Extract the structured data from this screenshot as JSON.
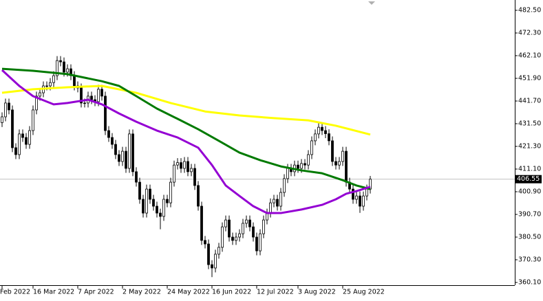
{
  "chart_data": {
    "type": "candlestick",
    "categories": [
      "Feb 2022",
      null,
      null,
      null,
      null,
      null,
      null,
      null,
      null,
      "16 Mar 2022",
      null,
      null,
      null,
      null,
      null,
      null,
      null,
      null,
      null,
      null,
      null,
      null,
      "7 Apr 2022",
      null,
      null,
      null,
      null,
      null,
      null,
      null,
      null,
      null,
      null,
      null,
      null,
      "2 May 2022",
      null,
      null,
      null,
      null,
      null,
      null,
      null,
      null,
      null,
      null,
      null,
      null,
      "24 May 2022",
      null,
      null,
      null,
      null,
      null,
      null,
      null,
      null,
      null,
      null,
      null,
      null,
      "16 Jun 2022",
      null,
      null,
      null,
      null,
      null,
      null,
      null,
      null,
      null,
      null,
      null,
      null,
      "12 Jul 2022",
      null,
      null,
      null,
      null,
      null,
      null,
      null,
      null,
      null,
      null,
      null,
      "3 Aug 2022",
      null,
      null,
      null,
      null,
      null,
      null,
      null,
      null,
      null,
      null,
      null,
      null,
      "25 Aug 2022",
      null,
      null,
      null,
      null,
      null,
      null,
      null,
      null
    ],
    "open": [
      432.0,
      434.6,
      440.8,
      437.7,
      420.7,
      417.6,
      426.9,
      425.3,
      422.2,
      428.4,
      437.7,
      443.9,
      445.4,
      448.5,
      448.5,
      450.0,
      453.1,
      459.9,
      459.3,
      454.7,
      456.2,
      453.1,
      448.5,
      447.6,
      440.8,
      440.8,
      443.9,
      442.3,
      441.4,
      447.0,
      443.9,
      428.4,
      425.3,
      422.2,
      417.6,
      414.5,
      419.1,
      411.4,
      426.9,
      409.9,
      405.2,
      397.5,
      391.3,
      402.1,
      397.5,
      394.4,
      391.3,
      389.8,
      397.5,
      395.9,
      405.2,
      412.9,
      414.0,
      411.4,
      414.5,
      409.9,
      411.4,
      403.7,
      394.4,
      379.0,
      377.4,
      368.1,
      366.6,
      372.8,
      375.9,
      385.1,
      388.2,
      380.5,
      379.0,
      380.5,
      382.0,
      386.7,
      388.2,
      385.1,
      380.5,
      374.3,
      382.0,
      388.2,
      391.3,
      395.9,
      397.5,
      394.4,
      400.6,
      406.8,
      411.4,
      409.9,
      412.9,
      411.4,
      413.6,
      412.9,
      417.6,
      423.8,
      426.9,
      429.9,
      428.4,
      427.0,
      423.8,
      414.5,
      412.9,
      414.5,
      419.1,
      405.2,
      402.1,
      397.5,
      399.0,
      394.4,
      399.0,
      402.1
    ],
    "high": [
      436.6,
      442.8,
      442.8,
      439.7,
      422.7,
      428.9,
      428.9,
      427.3,
      430.4,
      439.7,
      445.9,
      447.4,
      450.5,
      450.5,
      452.0,
      455.1,
      461.9,
      461.9,
      461.3,
      458.2,
      458.2,
      455.1,
      450.5,
      449.6,
      442.8,
      445.9,
      445.9,
      444.3,
      449.0,
      449.0,
      445.9,
      430.4,
      427.3,
      424.2,
      419.6,
      421.1,
      421.1,
      428.9,
      428.9,
      411.9,
      407.2,
      399.5,
      404.1,
      404.1,
      399.5,
      396.4,
      393.3,
      399.5,
      399.5,
      407.2,
      414.9,
      416.0,
      416.0,
      416.5,
      416.5,
      413.4,
      413.4,
      405.7,
      396.4,
      381.0,
      379.4,
      370.1,
      374.8,
      377.9,
      387.1,
      390.2,
      390.2,
      382.5,
      382.5,
      384.0,
      388.7,
      390.2,
      390.2,
      387.1,
      382.5,
      384.0,
      390.2,
      393.3,
      397.9,
      399.5,
      399.5,
      402.6,
      408.8,
      413.4,
      413.4,
      414.9,
      414.9,
      415.6,
      415.6,
      419.6,
      425.8,
      428.9,
      431.9,
      431.9,
      430.4,
      429.0,
      425.8,
      416.5,
      416.5,
      421.1,
      421.1,
      407.2,
      404.1,
      401.0,
      401.0,
      401.0,
      404.1,
      408.0
    ],
    "low": [
      430.0,
      432.6,
      435.7,
      418.7,
      415.6,
      415.6,
      423.3,
      420.2,
      420.2,
      426.4,
      435.7,
      441.9,
      443.4,
      446.5,
      446.5,
      448.0,
      451.1,
      457.3,
      452.7,
      452.7,
      451.1,
      446.5,
      445.6,
      438.8,
      438.8,
      438.8,
      440.3,
      439.4,
      439.4,
      441.9,
      426.4,
      423.3,
      420.2,
      415.6,
      412.5,
      412.5,
      409.4,
      409.4,
      407.9,
      403.2,
      395.5,
      389.3,
      389.3,
      395.5,
      392.4,
      389.3,
      384.0,
      387.8,
      393.9,
      393.9,
      403.2,
      410.9,
      409.4,
      409.4,
      407.9,
      407.9,
      401.7,
      392.4,
      377.0,
      375.4,
      366.1,
      362.5,
      364.6,
      370.8,
      373.9,
      383.1,
      378.5,
      377.0,
      377.0,
      378.5,
      380.0,
      384.7,
      383.1,
      378.5,
      372.3,
      372.3,
      380.0,
      386.2,
      389.3,
      393.9,
      392.4,
      392.4,
      398.6,
      404.8,
      407.9,
      407.9,
      409.4,
      409.4,
      410.9,
      410.9,
      415.6,
      421.8,
      424.9,
      426.4,
      425.0,
      421.8,
      412.5,
      410.9,
      410.9,
      412.5,
      403.2,
      400.1,
      395.5,
      395.5,
      391.4,
      392.4,
      397.0,
      400.1
    ],
    "close": [
      434.6,
      440.8,
      437.7,
      420.7,
      417.6,
      426.9,
      425.3,
      422.2,
      428.4,
      437.7,
      443.9,
      445.4,
      448.5,
      448.5,
      450.0,
      453.1,
      459.9,
      459.3,
      454.7,
      456.2,
      453.1,
      448.5,
      447.6,
      440.8,
      440.8,
      443.9,
      442.3,
      441.4,
      447.0,
      443.9,
      428.4,
      425.3,
      422.2,
      417.6,
      414.5,
      419.1,
      411.4,
      426.9,
      409.9,
      405.2,
      397.5,
      391.3,
      402.1,
      397.5,
      394.4,
      391.3,
      389.8,
      397.5,
      395.9,
      405.2,
      412.9,
      414.0,
      411.4,
      414.5,
      409.9,
      411.4,
      403.7,
      394.4,
      379.0,
      377.4,
      368.1,
      366.6,
      372.8,
      375.9,
      385.1,
      388.2,
      380.5,
      379.0,
      380.5,
      382.0,
      386.7,
      388.2,
      385.1,
      380.5,
      374.3,
      382.0,
      388.2,
      391.3,
      395.9,
      397.5,
      394.4,
      400.6,
      406.8,
      411.4,
      409.9,
      412.9,
      411.4,
      413.6,
      412.9,
      417.6,
      423.8,
      426.9,
      429.9,
      428.4,
      427.0,
      423.8,
      414.5,
      412.9,
      414.5,
      419.1,
      405.2,
      402.1,
      397.5,
      399.0,
      394.4,
      399.0,
      402.1,
      406.55
    ],
    "lines": [
      {
        "color": "#ffff00",
        "x": [
          0,
          9,
          19,
          29,
          39,
          49,
          59,
          69,
          79,
          89,
          97,
          107
        ],
        "values": [
          445.4,
          447.0,
          447.9,
          448.5,
          445.4,
          440.8,
          437.0,
          435.2,
          434.0,
          433.0,
          430.6,
          426.6
        ]
      },
      {
        "color": "#007a00",
        "x": [
          0,
          9,
          19,
          29,
          34,
          39,
          45,
          51,
          57,
          63,
          69,
          75,
          81,
          87,
          93,
          99,
          103,
          107
        ],
        "values": [
          456.2,
          455.3,
          453.8,
          450.6,
          448.5,
          443.9,
          438.3,
          433.7,
          429.0,
          423.8,
          418.5,
          415.1,
          412.3,
          410.5,
          409.2,
          406.1,
          403.7,
          402.1
        ]
      },
      {
        "color": "#9400d3",
        "x": [
          0,
          5,
          9,
          15,
          19,
          25,
          29,
          34,
          39,
          45,
          51,
          57,
          61,
          65,
          69,
          73,
          77,
          81,
          87,
          93,
          97,
          100,
          103,
          107
        ],
        "values": [
          455.6,
          448.5,
          443.9,
          440.2,
          440.8,
          442.3,
          440.2,
          436.1,
          432.4,
          428.4,
          425.3,
          420.7,
          412.9,
          403.7,
          399.0,
          394.4,
          391.3,
          391.3,
          392.9,
          395.0,
          397.5,
          400.0,
          401.2,
          403.1
        ]
      }
    ],
    "last_price": 406.55,
    "ylim": [
      358.86,
      487.14
    ],
    "yticks": [
      {
        "value": 482.5,
        "label": "482.50"
      },
      {
        "value": 472.3,
        "label": "472.30"
      },
      {
        "value": 462.1,
        "label": "462.10"
      },
      {
        "value": 451.9,
        "label": "451.90"
      },
      {
        "value": 441.7,
        "label": "441.70"
      },
      {
        "value": 431.5,
        "label": "431.50"
      },
      {
        "value": 421.3,
        "label": "421.30"
      },
      {
        "value": 411.1,
        "label": "411.10"
      },
      {
        "value": 400.9,
        "label": "400.90"
      },
      {
        "value": 390.7,
        "label": "390.70"
      },
      {
        "value": 380.5,
        "label": "380.50"
      },
      {
        "value": 370.3,
        "label": "370.30"
      },
      {
        "value": 360.1,
        "label": "360.10"
      }
    ]
  }
}
